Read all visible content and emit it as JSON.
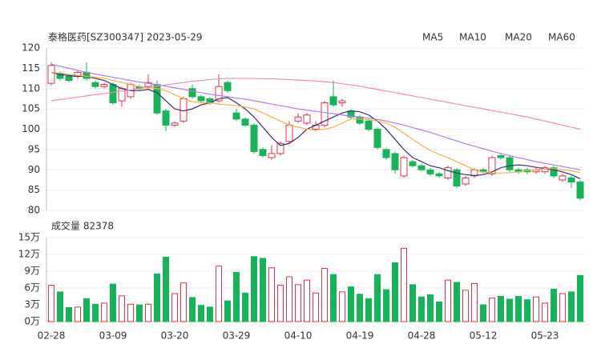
{
  "chart_data": [
    {
      "type": "candlestick",
      "title": "泰格医药[SZ300347] 2023-05-29",
      "up_color": "#e0304a",
      "down_color": "#17b35a",
      "grid": true,
      "categories": [
        "02-28",
        null,
        null,
        null,
        null,
        null,
        null,
        "03-09",
        null,
        null,
        null,
        null,
        null,
        null,
        "03-20",
        null,
        null,
        null,
        null,
        null,
        null,
        "03-29",
        null,
        null,
        null,
        null,
        null,
        null,
        "04-10",
        null,
        null,
        null,
        null,
        null,
        null,
        "04-19",
        null,
        null,
        null,
        null,
        null,
        null,
        "04-28",
        null,
        null,
        null,
        null,
        null,
        null,
        "05-12",
        null,
        null,
        null,
        null,
        null,
        null,
        "05-23",
        null,
        null,
        null,
        null
      ],
      "open": [
        111.3,
        113.8,
        113,
        113,
        114,
        111.5,
        110.5,
        111,
        107,
        108,
        110.5,
        110.5,
        111,
        104.5,
        101,
        102,
        110,
        108,
        107.5,
        107,
        111.5,
        104,
        102.5,
        101,
        95,
        93,
        94,
        97,
        102,
        101.5,
        100,
        101,
        108,
        106.5,
        104.5,
        103,
        102,
        100,
        95,
        94,
        88.5,
        92,
        91,
        90,
        89,
        88,
        90,
        86.5,
        88.5,
        90,
        89,
        93.5,
        93,
        90,
        90,
        89.5,
        89.5,
        90.5,
        87.5,
        88,
        87
      ],
      "high": [
        116.5,
        114.2,
        113.5,
        114.5,
        116.5,
        112,
        111.5,
        111.5,
        110.5,
        111.5,
        111,
        113.5,
        112,
        105,
        102,
        108,
        111,
        108.5,
        108,
        113.5,
        112,
        105,
        103,
        101.5,
        95.5,
        96,
        97,
        102,
        104,
        104,
        102,
        107,
        112,
        107.5,
        105,
        103.5,
        102.5,
        100.5,
        95.5,
        94.5,
        93.5,
        92.5,
        91.5,
        90.5,
        89.5,
        91,
        90.5,
        88.5,
        90.5,
        90.5,
        93.5,
        94,
        93.5,
        90.5,
        90.5,
        90.5,
        91,
        91,
        89,
        88.5,
        87.5
      ],
      "low": [
        110.8,
        112,
        111.5,
        112.5,
        112,
        110,
        110,
        106,
        105.5,
        107.5,
        109.5,
        110,
        103.5,
        99.5,
        100.5,
        101.5,
        107.5,
        106.5,
        106,
        106.5,
        109,
        102,
        100.5,
        94,
        93,
        92.5,
        93.5,
        96.5,
        101.5,
        101,
        99.5,
        100.5,
        105.5,
        105.5,
        102.5,
        101,
        99.5,
        95,
        92.5,
        89,
        88,
        90.5,
        89.5,
        88.5,
        88,
        87.5,
        85.5,
        86,
        88,
        89,
        88.5,
        92.5,
        89.5,
        89,
        89,
        89,
        89,
        88,
        87,
        85.5,
        82.5
      ],
      "close": [
        115.7,
        112.5,
        112,
        114,
        112.5,
        110.5,
        111,
        106.5,
        110,
        111,
        110,
        111.5,
        104,
        101,
        101.5,
        107.5,
        108,
        107,
        106.5,
        110.5,
        109.5,
        102.5,
        101,
        94.5,
        93.5,
        94,
        96.5,
        101,
        103,
        103.5,
        101,
        106.5,
        106,
        107,
        103,
        101.5,
        100,
        95.5,
        93,
        90,
        93,
        91,
        90,
        89,
        88.5,
        90.5,
        86,
        88,
        90,
        89.5,
        93,
        93,
        90,
        89.5,
        89.5,
        90,
        90.5,
        88.5,
        88.5,
        87,
        83
      ],
      "series": [
        {
          "name": "MA5",
          "color": "#3b2e6b",
          "values": [
            114,
            113.5,
            113.2,
            113,
            113,
            112.5,
            112,
            111,
            110,
            109.5,
            109.5,
            109.8,
            109,
            107,
            105,
            104.5,
            105,
            106,
            106.5,
            107.5,
            107.8,
            106.5,
            105,
            103,
            100.5,
            98,
            96,
            96.5,
            98,
            100,
            101,
            102,
            103,
            104,
            104.5,
            104.3,
            103.5,
            102,
            100,
            97.5,
            95,
            93,
            92,
            91,
            90.5,
            89.8,
            89.2,
            88.8,
            88.6,
            88.8,
            89.5,
            90.5,
            91,
            91.2,
            91,
            90.6,
            90.3,
            90,
            89.5,
            88.8,
            87.8
          ]
        },
        {
          "name": "MA10",
          "color": "#f5b041",
          "values": [
            114,
            113.8,
            113.5,
            113.3,
            113,
            112.8,
            112.5,
            112,
            111.5,
            111,
            110.5,
            110.2,
            110,
            109.5,
            108.5,
            107.5,
            106.8,
            106.5,
            106.5,
            106.2,
            106,
            105.8,
            105.5,
            105,
            104,
            103,
            102,
            101,
            100.5,
            100,
            99.8,
            100,
            100.5,
            101.5,
            102.5,
            102.5,
            102.3,
            102,
            101.5,
            100.5,
            99,
            97.5,
            96,
            94.8,
            93.8,
            93,
            92,
            91,
            90,
            89.5,
            89.2,
            89.2,
            89.3,
            89.5,
            89.8,
            90,
            90.3,
            90.3,
            90,
            89.8,
            89.3
          ]
        },
        {
          "name": "MA20",
          "color": "#b57edc",
          "values": [
            116,
            115.5,
            115,
            114.5,
            114,
            113.6,
            113.2,
            112.8,
            112.4,
            112,
            111.6,
            111.3,
            111,
            110.6,
            110.2,
            109.8,
            109.4,
            109,
            108.6,
            108.3,
            108,
            107.7,
            107.4,
            107,
            106.6,
            106.2,
            105.8,
            105.4,
            105,
            104.7,
            104.4,
            104.1,
            103.8,
            103.5,
            103.2,
            103,
            102.7,
            102.4,
            102,
            101.5,
            101,
            100.4,
            99.8,
            99.2,
            98.5,
            97.8,
            97.1,
            96.4,
            95.8,
            95.2,
            94.6,
            94,
            93.5,
            93,
            92.5,
            92,
            91.6,
            91.2,
            90.8,
            90.4,
            90
          ]
        },
        {
          "name": "MA60",
          "color": "#f08cb4",
          "values": [
            107,
            107.3,
            107.6,
            107.9,
            108.2,
            108.5,
            108.8,
            109.1,
            109.4,
            109.7,
            110,
            110.3,
            110.6,
            110.9,
            111.2,
            111.5,
            111.8,
            112,
            112.2,
            112.4,
            112.5,
            112.5,
            112.5,
            112.5,
            112.4,
            112.4,
            112.3,
            112.2,
            112.1,
            112,
            111.9,
            111.7,
            111.5,
            111.2,
            110.9,
            110.6,
            110.2,
            109.8,
            109.4,
            109,
            108.6,
            108.2,
            107.8,
            107.4,
            107,
            106.6,
            106.2,
            105.8,
            105.4,
            105,
            104.6,
            104.2,
            103.8,
            103.4,
            103,
            102.5,
            102,
            101.5,
            101,
            100.5,
            100
          ]
        }
      ],
      "ylim": [
        80,
        120
      ],
      "yticks": [
        80,
        85,
        90,
        95,
        100,
        105,
        110,
        115,
        120
      ]
    },
    {
      "type": "bar",
      "title": "成交量 82378",
      "grid": true,
      "values": [
        6.5,
        5.3,
        2.5,
        2.6,
        4.1,
        3.1,
        3.3,
        6.7,
        4.6,
        3.1,
        3.0,
        3.1,
        8.5,
        11.5,
        5.0,
        6.9,
        4.3,
        2.9,
        2.6,
        9.9,
        3.7,
        8.8,
        5.1,
        11.6,
        11.3,
        9.6,
        6.5,
        8.0,
        6.6,
        7.4,
        5.1,
        9.5,
        8.4,
        5.3,
        6.2,
        4.9,
        4.1,
        8.4,
        5.7,
        10.5,
        13.1,
        6.6,
        4.4,
        4.8,
        3.5,
        7.4,
        7.0,
        5.6,
        6.8,
        3.0,
        4.2,
        4.5,
        4.0,
        4.5,
        3.9,
        4.4,
        3.3,
        5.8,
        5.0,
        5.3,
        8.2378
      ],
      "ylim": [
        0,
        15
      ],
      "yticks": [
        {
          "value": 0,
          "label": "0万"
        },
        {
          "value": 3,
          "label": "3万"
        },
        {
          "value": 6,
          "label": "6万"
        },
        {
          "value": 9,
          "label": "9万"
        },
        {
          "value": 12,
          "label": "12万"
        },
        {
          "value": 15,
          "label": "15万"
        }
      ]
    }
  ]
}
